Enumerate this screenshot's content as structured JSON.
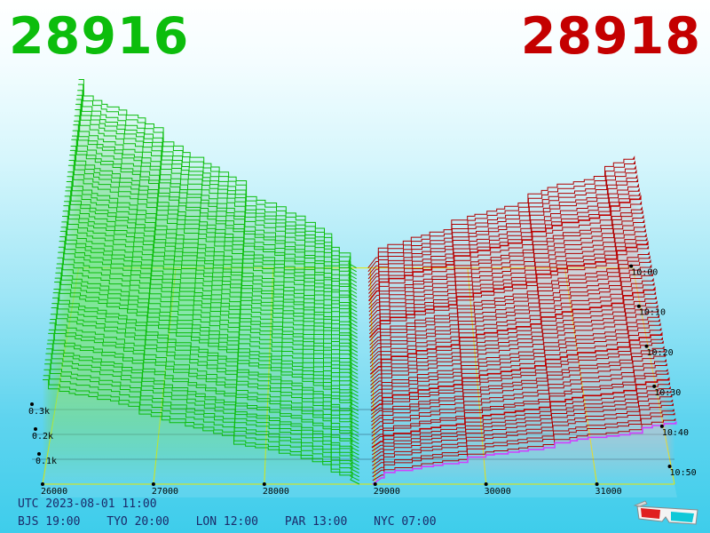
{
  "header": {
    "bid_price": "28916",
    "ask_price": "28918",
    "bid_color": "#0cbd0c",
    "ask_color": "#c40000"
  },
  "footer": {
    "utc": "UTC 2023-08-01 11:00",
    "zones": [
      "BJS 19:00",
      "TYO 20:00",
      "LON 12:00",
      "PAR 13:00",
      "NYC 07:00"
    ]
  },
  "icons": {
    "glasses": "3d-glasses-icon"
  },
  "chart_data": {
    "type": "area",
    "view": "3d-stacked-depth",
    "x_ticks": [
      "26000",
      "27000",
      "28000",
      "29000",
      "30000",
      "31000"
    ],
    "z_ticks": [
      "0.1k",
      "0.2k",
      "0.3k"
    ],
    "time_ticks": [
      "10:00",
      "10:10",
      "10:20",
      "10:30",
      "10:40",
      "10:50"
    ],
    "mid_price": 28917,
    "xlim": [
      26000,
      31700
    ],
    "colors": {
      "bid": "#0cbd0c",
      "ask": "#b00000",
      "latest_ask": "#d040ff",
      "grid": "#e6e600"
    }
  }
}
